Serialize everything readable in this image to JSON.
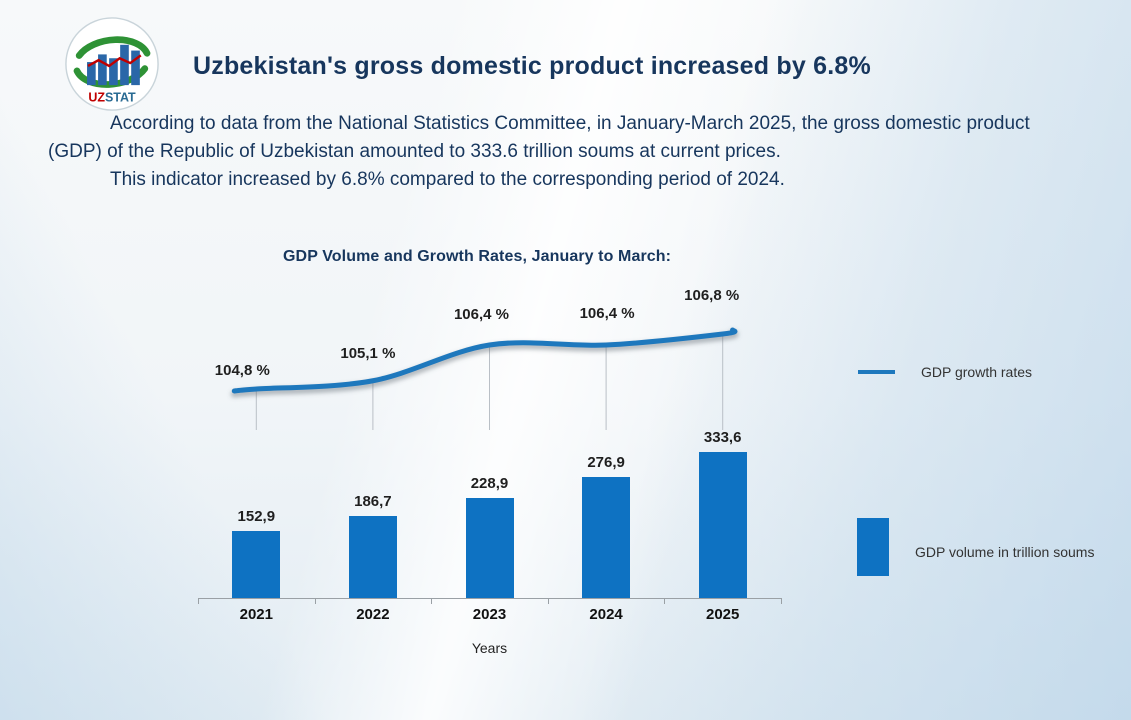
{
  "header": {
    "title": "Uzbekistan's gross domestic product increased by 6.8%"
  },
  "logo": {
    "uz": "UZ",
    "stat": "STAT"
  },
  "body": {
    "paragraph1": "According to data from the National Statistics Committee, in January-March 2025, the gross domestic product (GDP) of the Republic of Uzbekistan amounted to 333.6 trillion soums at current prices.",
    "paragraph2": "This indicator increased by 6.8% compared to the corresponding period of 2024."
  },
  "chart_data": {
    "type": "combo",
    "title": "GDP Volume and Growth Rates, January to March:",
    "categories": [
      "2021",
      "2022",
      "2023",
      "2024",
      "2025"
    ],
    "series": [
      {
        "name": "GDP growth rates",
        "type": "line",
        "values": [
          104.8,
          105.1,
          106.4,
          106.4,
          106.8
        ],
        "labels": [
          "104,8 %",
          "105,1 %",
          "106,4 %",
          "106,4 %",
          "106,8 %"
        ],
        "color": "#1e78bd"
      },
      {
        "name": "GDP volume in trillion soums",
        "type": "bar",
        "values": [
          152.9,
          186.7,
          228.9,
          276.9,
          333.6
        ],
        "labels": [
          "152,9",
          "186,7",
          "228,9",
          "276,9",
          "333,6"
        ],
        "color": "#0e72c2"
      }
    ],
    "xlabel": "Years",
    "legend_position": "right",
    "grid": false,
    "colors": {
      "title_navy": "#17365d",
      "bar_blue": "#0e72c2",
      "line_blue": "#1e78bd",
      "label_dark": "#1f1f1f",
      "axis_gray": "#9aa0a5"
    }
  }
}
